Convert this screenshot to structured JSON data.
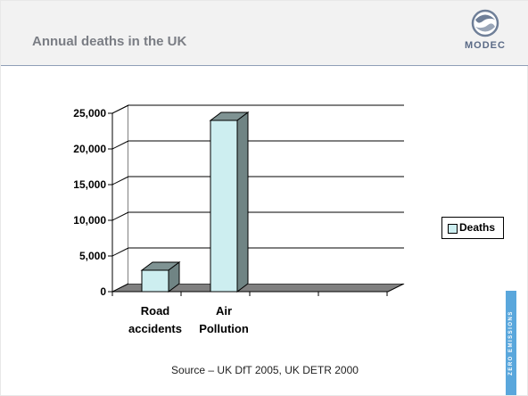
{
  "header": {
    "title": "Annual deaths in the UK"
  },
  "logo": {
    "icon": "modec-swirl-logo",
    "text": "MODEC"
  },
  "side_band": {
    "text": "ZERO EMISSIONS",
    "color": "#5aa7dc"
  },
  "source": "Source – UK DfT 2005, UK DETR 2000",
  "chart_data": {
    "type": "bar",
    "style": "3d",
    "categories": [
      "Road accidents",
      "Air Pollution"
    ],
    "category_lines": [
      [
        "Road",
        "accidents"
      ],
      [
        "Air",
        "Pollution"
      ]
    ],
    "series": [
      {
        "name": "Deaths",
        "values": [
          3000,
          24000
        ],
        "color": "#cdeef0"
      }
    ],
    "ylim": [
      0,
      25000
    ],
    "yticks": [
      "0",
      "5,000",
      "10,000",
      "15,000",
      "20,000",
      "25,000"
    ],
    "ytick_values": [
      0,
      5000,
      10000,
      15000,
      20000,
      25000
    ],
    "grid": true,
    "legend_position": "right",
    "title": "",
    "xlabel": "",
    "ylabel": ""
  }
}
